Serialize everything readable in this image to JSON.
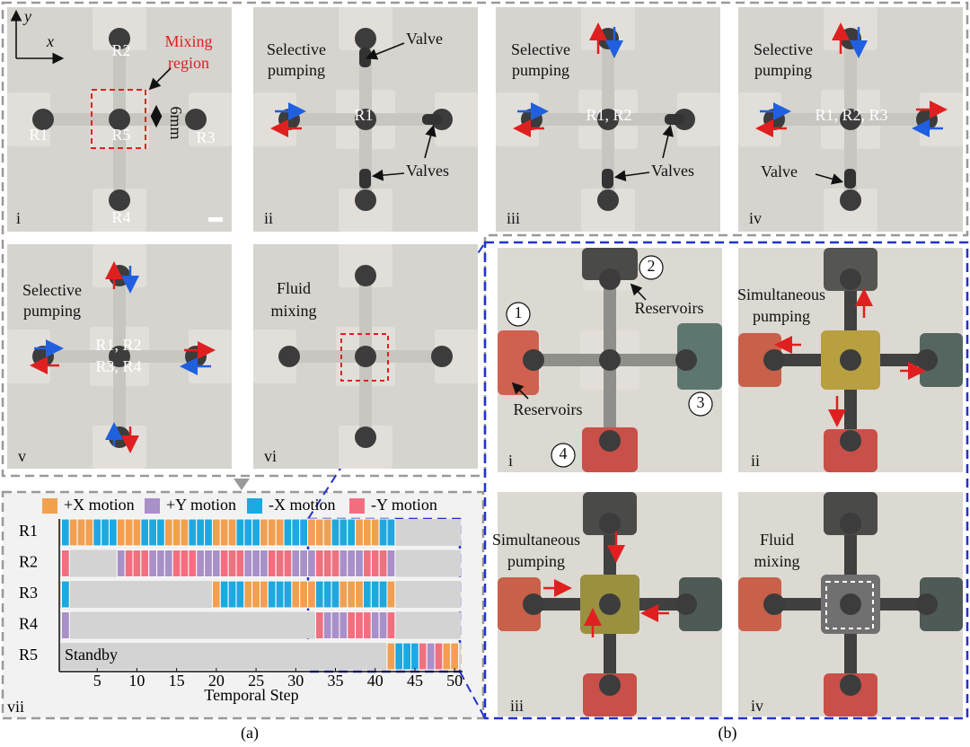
{
  "figure": {
    "captions": [
      "(a)",
      "(b)"
    ],
    "panels": [
      {
        "texts": [
          "y",
          "x",
          "R2",
          "Mixing",
          "region",
          "R1",
          "R5",
          "R3",
          "R4",
          "6mm",
          "i"
        ]
      },
      {
        "texts": [
          "Selective",
          "pumping",
          "Valve",
          "R1",
          "Valves",
          "ii"
        ]
      },
      {
        "texts": [
          "Selective",
          "pumping",
          "R1, R2",
          "Valves",
          "iii"
        ]
      },
      {
        "texts": [
          "Selective",
          "pumping",
          "R1, R2, R3",
          "Valve",
          "iv"
        ]
      },
      {
        "texts": [
          "Selective",
          "pumping",
          "R1, R2",
          "R3, R4",
          "v"
        ]
      },
      {
        "texts": [
          "Fluid",
          "mixing",
          "vi"
        ]
      },
      {
        "texts": [
          "2",
          "1",
          "Reservoirs",
          "Reservoirs",
          "3",
          "4",
          "i"
        ]
      },
      {
        "texts": [
          "Simultaneous",
          "pumping",
          "ii"
        ]
      },
      {
        "texts": [
          "Simultaneous",
          "pumping",
          "iii"
        ]
      },
      {
        "texts": [
          "Fluid",
          "mixing",
          "iv"
        ]
      }
    ]
  },
  "chart_data": {
    "type": "timeline",
    "panel_label": "vii",
    "xlabel": "Temporal Step",
    "annotation": "Standby",
    "xlim": [
      0,
      51
    ],
    "xticks": [
      5,
      10,
      15,
      20,
      25,
      30,
      35,
      40,
      45,
      50
    ],
    "legend": [
      {
        "name": "+X motion",
        "color": "#f0a050"
      },
      {
        "name": "+Y motion",
        "color": "#a890c8"
      },
      {
        "name": "-X motion",
        "color": "#1ea8e0"
      },
      {
        "name": "-Y motion",
        "color": "#f07080"
      }
    ],
    "rows": [
      {
        "name": "R1",
        "segments": [
          {
            "motion": "-X motion",
            "start": 1,
            "end": 1
          },
          {
            "motion": "+X motion",
            "start": 2,
            "end": 4
          },
          {
            "motion": "-X motion",
            "start": 5,
            "end": 7
          },
          {
            "motion": "+X motion",
            "start": 8,
            "end": 10
          },
          {
            "motion": "-X motion",
            "start": 11,
            "end": 13
          },
          {
            "motion": "+X motion",
            "start": 14,
            "end": 16
          },
          {
            "motion": "-X motion",
            "start": 17,
            "end": 19
          },
          {
            "motion": "+X motion",
            "start": 20,
            "end": 22
          },
          {
            "motion": "-X motion",
            "start": 23,
            "end": 25
          },
          {
            "motion": "+X motion",
            "start": 26,
            "end": 28
          },
          {
            "motion": "-X motion",
            "start": 29,
            "end": 31
          },
          {
            "motion": "+X motion",
            "start": 32,
            "end": 34
          },
          {
            "motion": "-X motion",
            "start": 35,
            "end": 37
          },
          {
            "motion": "+X motion",
            "start": 38,
            "end": 40
          },
          {
            "motion": "-X motion",
            "start": 41,
            "end": 42
          }
        ]
      },
      {
        "name": "R2",
        "segments": [
          {
            "motion": "-Y motion",
            "start": 1,
            "end": 1
          },
          {
            "motion": "+Y motion",
            "start": 8,
            "end": 8
          },
          {
            "motion": "-Y motion",
            "start": 9,
            "end": 11
          },
          {
            "motion": "+Y motion",
            "start": 12,
            "end": 14
          },
          {
            "motion": "-Y motion",
            "start": 15,
            "end": 17
          },
          {
            "motion": "+Y motion",
            "start": 18,
            "end": 20
          },
          {
            "motion": "-Y motion",
            "start": 21,
            "end": 23
          },
          {
            "motion": "+Y motion",
            "start": 24,
            "end": 26
          },
          {
            "motion": "-Y motion",
            "start": 27,
            "end": 29
          },
          {
            "motion": "+Y motion",
            "start": 30,
            "end": 32
          },
          {
            "motion": "-Y motion",
            "start": 33,
            "end": 35
          },
          {
            "motion": "+Y motion",
            "start": 36,
            "end": 38
          },
          {
            "motion": "-Y motion",
            "start": 39,
            "end": 41
          },
          {
            "motion": "+Y motion",
            "start": 42,
            "end": 42
          }
        ]
      },
      {
        "name": "R3",
        "segments": [
          {
            "motion": "-X motion",
            "start": 1,
            "end": 1
          },
          {
            "motion": "+X motion",
            "start": 20,
            "end": 20
          },
          {
            "motion": "-X motion",
            "start": 21,
            "end": 23
          },
          {
            "motion": "+X motion",
            "start": 24,
            "end": 26
          },
          {
            "motion": "-X motion",
            "start": 27,
            "end": 29
          },
          {
            "motion": "+X motion",
            "start": 30,
            "end": 32
          },
          {
            "motion": "-X motion",
            "start": 33,
            "end": 35
          },
          {
            "motion": "+X motion",
            "start": 36,
            "end": 38
          },
          {
            "motion": "-X motion",
            "start": 39,
            "end": 41
          },
          {
            "motion": "+X motion",
            "start": 42,
            "end": 42
          }
        ]
      },
      {
        "name": "R4",
        "segments": [
          {
            "motion": "+Y motion",
            "start": 1,
            "end": 1
          },
          {
            "motion": "-Y motion",
            "start": 33,
            "end": 33
          },
          {
            "motion": "+Y motion",
            "start": 34,
            "end": 36
          },
          {
            "motion": "-Y motion",
            "start": 37,
            "end": 39
          },
          {
            "motion": "+Y motion",
            "start": 40,
            "end": 41
          },
          {
            "motion": "-Y motion",
            "start": 42,
            "end": 42
          }
        ]
      },
      {
        "name": "R5",
        "segments": [
          {
            "motion": "+X motion",
            "start": 42,
            "end": 42
          },
          {
            "motion": "-X motion",
            "start": 43,
            "end": 45
          },
          {
            "motion": "-Y motion",
            "start": 46,
            "end": 46
          },
          {
            "motion": "+Y motion",
            "start": 47,
            "end": 47
          },
          {
            "motion": "-Y motion",
            "start": 48,
            "end": 48
          },
          {
            "motion": "+X motion",
            "start": 49,
            "end": 50
          }
        ]
      }
    ]
  }
}
